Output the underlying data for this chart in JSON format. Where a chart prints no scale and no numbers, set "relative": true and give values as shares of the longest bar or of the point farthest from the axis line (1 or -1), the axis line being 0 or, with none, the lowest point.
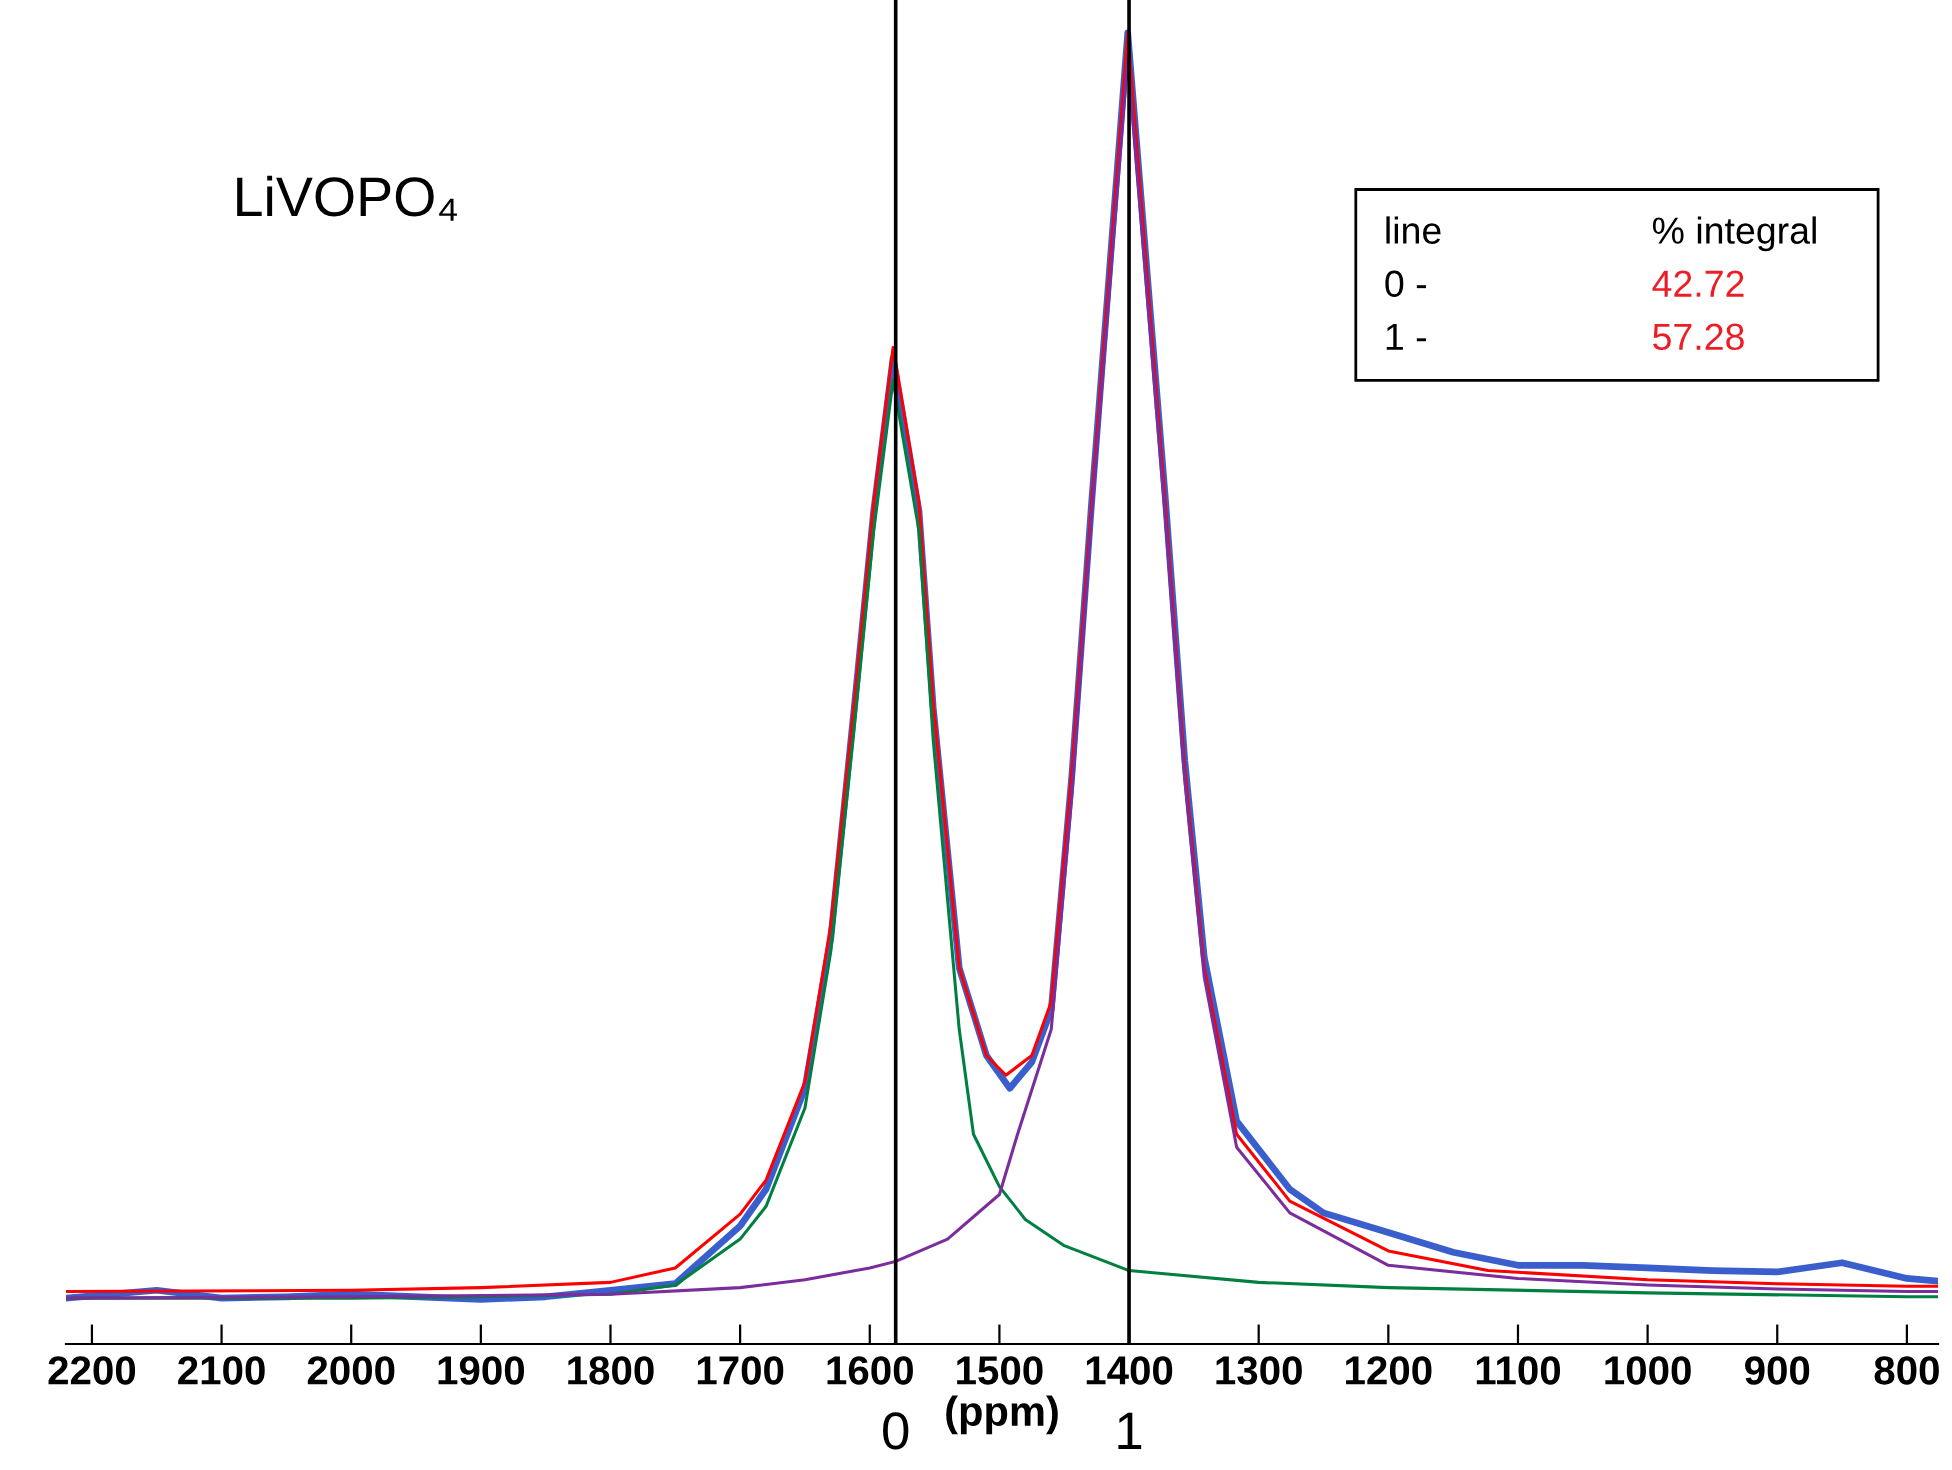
{
  "chart_data": {
    "type": "line",
    "relative": true,
    "title": "LiVOPO₄",
    "xlabel": "(ppm)",
    "xlim": [
      2220,
      776
    ],
    "xticks": [
      2200,
      2100,
      2000,
      1900,
      1800,
      1700,
      1600,
      1500,
      1400,
      1300,
      1200,
      1100,
      1000,
      900,
      800
    ],
    "grid": false,
    "legend": false,
    "marker": "none",
    "line_style": "solid",
    "annotations": [
      "line",
      "% integral",
      "0 -",
      "42.72",
      "1 -",
      "57.28",
      "0",
      "1"
    ],
    "ref_lines": [
      {
        "axis": "x",
        "value": 1580,
        "color": "#000000"
      },
      {
        "axis": "x",
        "value": 1400,
        "color": "#000000"
      }
    ],
    "series": [
      {
        "color": "#3a5fcd",
        "x": [
          2220,
          2150,
          2100,
          2050,
          2000,
          1900,
          1850,
          1800,
          1750,
          1700,
          1680,
          1650,
          1630,
          1612,
          1597,
          1582,
          1562,
          1551,
          1531,
          1510,
          1492,
          1475,
          1460,
          1444,
          1429,
          1401,
          1372,
          1357,
          1342,
          1317,
          1276,
          1250,
          1200,
          1150,
          1100,
          1050,
          1000,
          950,
          900,
          850,
          800,
          776
        ],
        "values": [
          0.035,
          0.041,
          0.035,
          0.036,
          0.038,
          0.034,
          0.036,
          0.041,
          0.046,
          0.09,
          0.118,
          0.195,
          0.31,
          0.485,
          0.635,
          0.752,
          0.635,
          0.485,
          0.287,
          0.22,
          0.195,
          0.215,
          0.255,
          0.435,
          0.64,
          1.0,
          0.645,
          0.445,
          0.295,
          0.17,
          0.118,
          0.1,
          0.085,
          0.07,
          0.06,
          0.06,
          0.058,
          0.056,
          0.055,
          0.062,
          0.05,
          0.048
        ]
      },
      {
        "color": "#ff0000",
        "x": [
          2220,
          2000,
          1900,
          1800,
          1750,
          1700,
          1680,
          1650,
          1630,
          1612,
          1597,
          1582,
          1562,
          1551,
          1531,
          1510,
          1495,
          1475,
          1460,
          1444,
          1429,
          1401,
          1372,
          1357,
          1342,
          1317,
          1276,
          1200,
          1123,
          1000,
          900,
          800,
          776
        ],
        "values": [
          0.04,
          0.041,
          0.043,
          0.047,
          0.058,
          0.099,
          0.125,
          0.2,
          0.32,
          0.489,
          0.641,
          0.76,
          0.641,
          0.489,
          0.287,
          0.22,
          0.205,
          0.22,
          0.261,
          0.439,
          0.641,
          1.0,
          0.641,
          0.439,
          0.287,
          0.16,
          0.109,
          0.071,
          0.056,
          0.049,
          0.046,
          0.044,
          0.044
        ]
      },
      {
        "color": "#008040",
        "x": [
          2220,
          2000,
          1900,
          1800,
          1750,
          1700,
          1680,
          1650,
          1630,
          1612,
          1597,
          1582,
          1562,
          1551,
          1531,
          1520,
          1500,
          1480,
          1450,
          1400,
          1300,
          1200,
          1000,
          800,
          776
        ],
        "values": [
          0.035,
          0.035,
          0.036,
          0.038,
          0.045,
          0.08,
          0.105,
          0.18,
          0.3,
          0.47,
          0.62,
          0.735,
          0.62,
          0.46,
          0.24,
          0.16,
          0.12,
          0.095,
          0.075,
          0.056,
          0.047,
          0.043,
          0.039,
          0.036,
          0.036
        ]
      },
      {
        "color": "#7b2d9b",
        "x": [
          2220,
          2000,
          1800,
          1700,
          1650,
          1600,
          1580,
          1540,
          1500,
          1486,
          1460,
          1444,
          1429,
          1401,
          1372,
          1357,
          1342,
          1317,
          1276,
          1200,
          1100,
          1000,
          900,
          800,
          776
        ],
        "values": [
          0.035,
          0.036,
          0.038,
          0.043,
          0.049,
          0.058,
          0.063,
          0.08,
          0.114,
          0.16,
          0.24,
          0.42,
          0.63,
          0.98,
          0.63,
          0.43,
          0.28,
          0.15,
          0.1,
          0.06,
          0.05,
          0.045,
          0.042,
          0.04,
          0.04
        ]
      }
    ]
  }
}
